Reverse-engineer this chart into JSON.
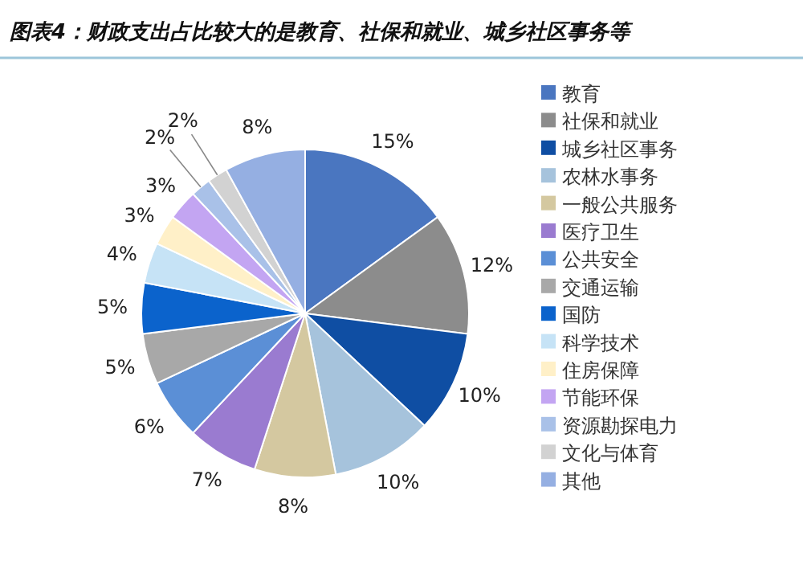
{
  "chart_data": {
    "type": "pie",
    "title": "图表4：财政支出占比较大的是教育、社保和就业、城乡社区事务等",
    "categories": [
      "教育",
      "社保和就业",
      "城乡社区事务",
      "农林水事务",
      "一般公共服务",
      "医疗卫生",
      "公共安全",
      "交通运输",
      "国防",
      "科学技术",
      "住房保障",
      "节能环保",
      "资源勘探电力",
      "文化与体育",
      "其他"
    ],
    "values": [
      15,
      12,
      10,
      10,
      8,
      7,
      6,
      5,
      5,
      4,
      3,
      3,
      2,
      2,
      8
    ],
    "colors": [
      "#4a76c0",
      "#8c8c8c",
      "#0f4ea3",
      "#a6c3dc",
      "#d4c8a0",
      "#9a7bd0",
      "#5b8fd6",
      "#a8a8a8",
      "#0b63cc",
      "#c6e3f6",
      "#fff0c8",
      "#c3a5f2",
      "#a9c1e8",
      "#d2d2d2",
      "#95afe2"
    ],
    "value_labels": [
      "15%",
      "12%",
      "10%",
      "10%",
      "8%",
      "7%",
      "6%",
      "5%",
      "5%",
      "4%",
      "3%",
      "3%",
      "2%",
      "2%",
      "8%"
    ],
    "legend": "right"
  }
}
